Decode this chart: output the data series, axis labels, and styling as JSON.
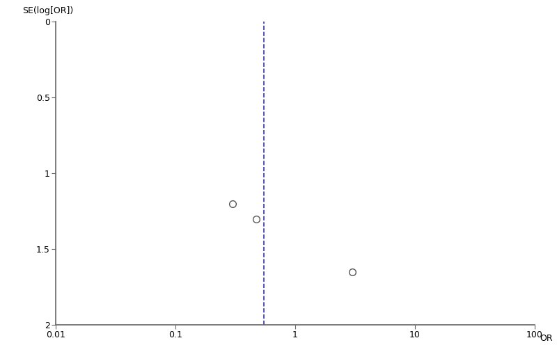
{
  "points": [
    {
      "or": 0.3,
      "se": 1.2
    },
    {
      "or": 0.47,
      "se": 1.3
    },
    {
      "or": 3.0,
      "se": 1.65
    }
  ],
  "pooled_or": 0.55,
  "xlim": [
    0.01,
    100
  ],
  "ylim": [
    2.0,
    0.0
  ],
  "xlabel": "OR",
  "ylabel": "SE(log[OR])",
  "yticks": [
    0,
    0.5,
    1,
    1.5,
    2
  ],
  "ytick_labels": [
    "0",
    "0.5",
    "1",
    "1.5",
    "2"
  ],
  "xticks": [
    0.01,
    0.1,
    1,
    10,
    100
  ],
  "xtick_labels": [
    "0.01",
    "0.1",
    "1",
    "10",
    "100"
  ],
  "dashed_line_color": "#3333aa",
  "marker_color": "#555555",
  "marker_size": 7,
  "bg_color": "#ffffff",
  "axis_color": "#666666",
  "spine_linewidth": 1.2
}
